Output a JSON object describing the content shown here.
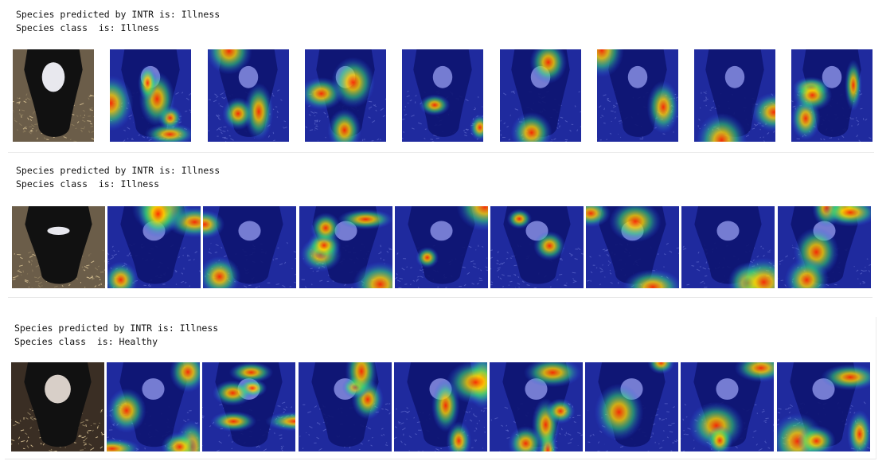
{
  "outputs": [
    {
      "predicted_line": "Species predicted by INTR is: Illness",
      "class_line": "Species class  is: Illness",
      "images": [
        {
          "kind": "original",
          "icon": "cow-photo-original"
        },
        {
          "kind": "heatmap",
          "icon": "attention-heatmap"
        },
        {
          "kind": "heatmap",
          "icon": "attention-heatmap"
        },
        {
          "kind": "heatmap",
          "icon": "attention-heatmap"
        },
        {
          "kind": "heatmap",
          "icon": "attention-heatmap"
        },
        {
          "kind": "heatmap",
          "icon": "attention-heatmap"
        },
        {
          "kind": "heatmap",
          "icon": "attention-heatmap"
        },
        {
          "kind": "heatmap",
          "icon": "attention-heatmap"
        },
        {
          "kind": "heatmap",
          "icon": "attention-heatmap"
        }
      ]
    },
    {
      "predicted_line": "Species predicted by INTR is: Illness",
      "class_line": "Species class  is: Illness",
      "images": [
        {
          "kind": "original",
          "icon": "cow-photo-original"
        },
        {
          "kind": "heatmap",
          "icon": "attention-heatmap"
        },
        {
          "kind": "heatmap",
          "icon": "attention-heatmap"
        },
        {
          "kind": "heatmap",
          "icon": "attention-heatmap"
        },
        {
          "kind": "heatmap",
          "icon": "attention-heatmap"
        },
        {
          "kind": "heatmap",
          "icon": "attention-heatmap"
        },
        {
          "kind": "heatmap",
          "icon": "attention-heatmap"
        },
        {
          "kind": "heatmap",
          "icon": "attention-heatmap"
        },
        {
          "kind": "heatmap",
          "icon": "attention-heatmap"
        }
      ]
    },
    {
      "predicted_line": "Species predicted by INTR is: Illness",
      "class_line": "Species class  is: Healthy",
      "images": [
        {
          "kind": "original",
          "icon": "cow-photo-original"
        },
        {
          "kind": "heatmap",
          "icon": "attention-heatmap"
        },
        {
          "kind": "heatmap",
          "icon": "attention-heatmap"
        },
        {
          "kind": "heatmap",
          "icon": "attention-heatmap"
        },
        {
          "kind": "heatmap",
          "icon": "attention-heatmap"
        },
        {
          "kind": "heatmap",
          "icon": "attention-heatmap"
        },
        {
          "kind": "heatmap",
          "icon": "attention-heatmap"
        },
        {
          "kind": "heatmap",
          "icon": "attention-heatmap"
        },
        {
          "kind": "heatmap",
          "icon": "attention-heatmap"
        }
      ]
    }
  ]
}
